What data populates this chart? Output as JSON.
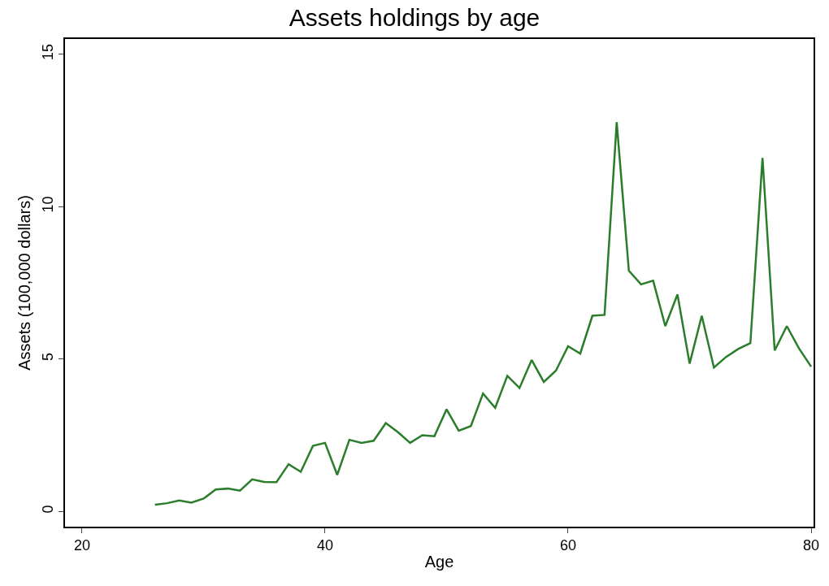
{
  "chart_data": {
    "type": "line",
    "title": "Assets holdings by age",
    "xlabel": "Age",
    "ylabel": "Assets (100,000 dollars)",
    "x": [
      26,
      27,
      28,
      29,
      30,
      31,
      32,
      33,
      34,
      35,
      36,
      37,
      38,
      39,
      40,
      41,
      42,
      43,
      44,
      45,
      46,
      47,
      48,
      49,
      50,
      51,
      52,
      53,
      54,
      55,
      56,
      57,
      58,
      59,
      60,
      61,
      62,
      63,
      64,
      65,
      66,
      67,
      68,
      69,
      70,
      71,
      72,
      73,
      74,
      75,
      76,
      77,
      78,
      79,
      80
    ],
    "series": [
      {
        "color": "#2a7d2a",
        "values": [
          0.22,
          0.27,
          0.36,
          0.29,
          0.42,
          0.72,
          0.75,
          0.68,
          1.05,
          0.97,
          0.96,
          1.55,
          1.3,
          2.15,
          2.25,
          1.2,
          2.35,
          2.25,
          2.32,
          2.9,
          2.6,
          2.25,
          2.5,
          2.47,
          3.35,
          2.65,
          2.8,
          3.87,
          3.4,
          4.45,
          4.05,
          4.97,
          4.25,
          4.62,
          5.42,
          5.18,
          6.42,
          6.45,
          12.77,
          7.9,
          7.45,
          7.57,
          6.08,
          7.12,
          4.85,
          6.42,
          4.72,
          5.07,
          5.33,
          5.52,
          11.6,
          5.28,
          6.08,
          5.35,
          4.75
        ]
      }
    ],
    "xlim": [
      18.6,
      80.2
    ],
    "xticks": [
      20,
      40,
      60,
      80
    ],
    "ylim": [
      -0.5,
      15.5
    ],
    "yticks": [
      0,
      5,
      10,
      15
    ],
    "marker": "none",
    "line_style": "solid"
  }
}
